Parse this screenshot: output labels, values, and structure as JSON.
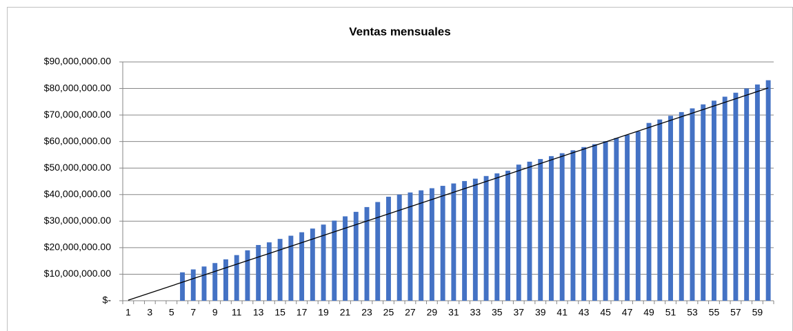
{
  "chart_data": {
    "type": "bar",
    "title": "Ventas mensuales",
    "categories": [
      1,
      null,
      3,
      null,
      5,
      null,
      7,
      null,
      9,
      null,
      11,
      null,
      13,
      null,
      15,
      null,
      17,
      null,
      19,
      null,
      21,
      null,
      23,
      null,
      25,
      null,
      27,
      null,
      29,
      null,
      31,
      null,
      33,
      null,
      35,
      null,
      37,
      null,
      39,
      null,
      41,
      null,
      43,
      null,
      45,
      null,
      47,
      null,
      49,
      null,
      51,
      null,
      53,
      null,
      55,
      null,
      57,
      null,
      59,
      null
    ],
    "values": [
      0,
      0,
      0,
      0,
      0,
      10700000,
      11800000,
      12900000,
      14200000,
      15600000,
      17200000,
      19000000,
      21000000,
      22000000,
      23300000,
      24500000,
      25800000,
      27200000,
      28700000,
      30200000,
      31800000,
      33500000,
      35300000,
      37200000,
      39200000,
      40000000,
      40800000,
      41600000,
      42400000,
      43300000,
      44200000,
      45100000,
      46000000,
      47000000,
      48000000,
      49000000,
      51300000,
      52400000,
      53400000,
      54500000,
      55600000,
      56700000,
      57900000,
      59000000,
      60100000,
      61300000,
      62500000,
      63800000,
      67000000,
      68300000,
      69700000,
      71100000,
      72500000,
      74000000,
      75400000,
      76900000,
      78400000,
      80000000,
      81500000,
      83100000
    ],
    "color": "#4472c4",
    "trendline": {
      "x": [
        1,
        60
      ],
      "values": [
        200000,
        80200000
      ],
      "color": "#000000"
    },
    "ylim": [
      0,
      90000000
    ],
    "yticks": [
      {
        "value": 0,
        "label": "$-"
      },
      {
        "value": 10000000,
        "label": "$10,000,000.00"
      },
      {
        "value": 20000000,
        "label": "$20,000,000.00"
      },
      {
        "value": 30000000,
        "label": "$30,000,000.00"
      },
      {
        "value": 40000000,
        "label": "$40,000,000.00"
      },
      {
        "value": 50000000,
        "label": "$50,000,000.00"
      },
      {
        "value": 60000000,
        "label": "$60,000,000.00"
      },
      {
        "value": 70000000,
        "label": "$70,000,000.00"
      },
      {
        "value": 80000000,
        "label": "$80,000,000.00"
      },
      {
        "value": 90000000,
        "label": "$90,000,000.00"
      }
    ],
    "grid": true
  }
}
